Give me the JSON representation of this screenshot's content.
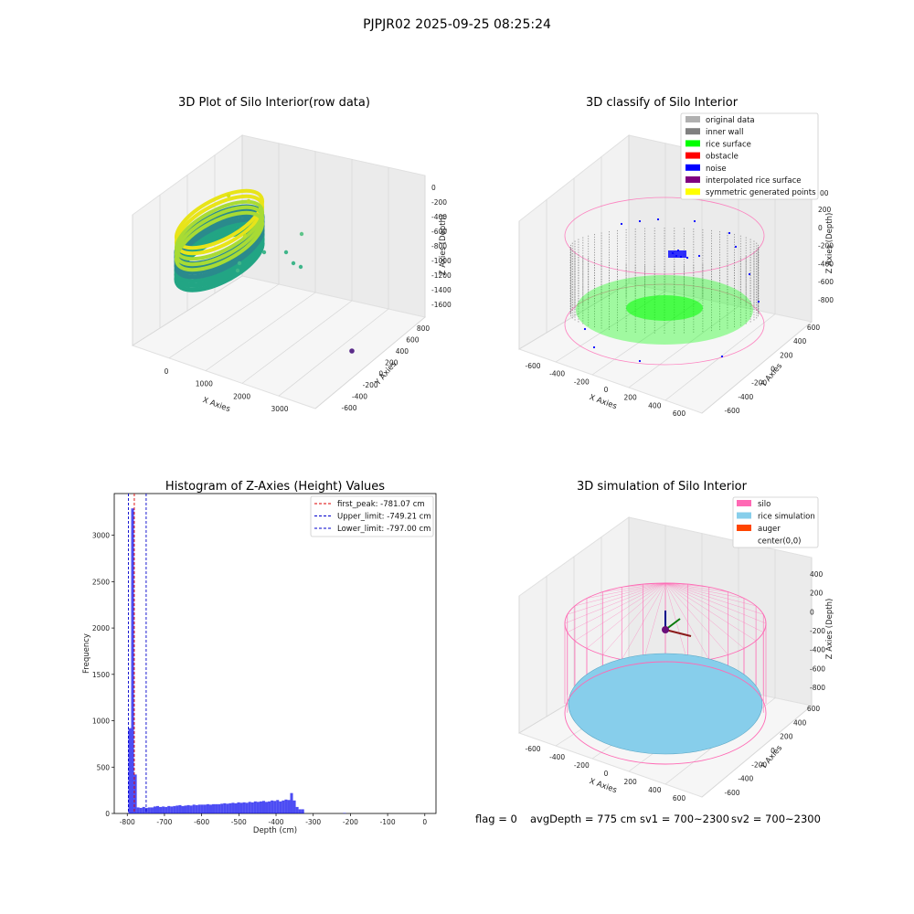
{
  "figure": {
    "suptitle": "PJPJR02 2025-09-25 08:25:24",
    "status": {
      "flag": "flag = 0",
      "avg_depth": "avgDepth = 775 cm",
      "sv1": "sv1 = 700~2300",
      "sv2": "sv2 = 700~2300"
    }
  },
  "colors": {
    "hist_bar": "#0000ee",
    "first_peak": "#dd0000",
    "limits": "#0000cc",
    "silo": "#ff69b4",
    "rice_simulation": "#87ceeb",
    "auger": "#ff4500",
    "inner_wall": "#808080",
    "rice_surface": "#00ff00",
    "noise": "#0000ff"
  },
  "chart_data": [
    {
      "type": "scatter3d",
      "title": "3D Plot of Silo Interior(row data)",
      "xlabel": "X Axies",
      "ylabel": "Y Axies",
      "zlabel": "Z Axies (Depth)",
      "x_ticks": [
        "0",
        "1000",
        "2000",
        "3000"
      ],
      "y_ticks": [
        "-600",
        "-400",
        "-200",
        "0",
        "200",
        "400",
        "600",
        "800"
      ],
      "z_ticks": [
        "0",
        "-200",
        "-400",
        "-600",
        "-800",
        "-1000",
        "-1200",
        "-1400",
        "-1600"
      ],
      "xlim": [
        -500,
        3500
      ],
      "ylim": [
        -700,
        900
      ],
      "zlim": [
        -1700,
        100
      ],
      "colormap": "viridis"
    },
    {
      "type": "scatter3d",
      "title": "3D classify of Silo Interior",
      "xlabel": "X Axies",
      "ylabel": "Y Axies",
      "zlabel": "Z Axies (Depth)",
      "x_ticks": [
        "-600",
        "-400",
        "-200",
        "0",
        "200",
        "400",
        "600"
      ],
      "y_ticks": [
        "-600",
        "-400",
        "-200",
        "0",
        "200",
        "400",
        "600"
      ],
      "z_ticks": [
        "200",
        "0",
        "-200",
        "-400",
        "-600",
        "-800"
      ],
      "z_top_tick": "00",
      "legend": [
        {
          "label": "original data",
          "color": "#b0b0b0"
        },
        {
          "label": "inner wall",
          "color": "#808080"
        },
        {
          "label": "rice surface",
          "color": "#00ff00"
        },
        {
          "label": "obstacle",
          "color": "#ff0000"
        },
        {
          "label": "noise",
          "color": "#0000ff"
        },
        {
          "label": "interpolated rice surface",
          "color": "#800080"
        },
        {
          "label": "symmetric generated points",
          "color": "#ffff00"
        }
      ]
    },
    {
      "type": "bar",
      "title": "Histogram of Z-Axies (Height) Values",
      "xlabel": "Depth (cm)",
      "ylabel": "Frequency",
      "xlim": [
        -835,
        30
      ],
      "ylim": [
        0,
        3450
      ],
      "x_ticks": [
        -800,
        -700,
        -600,
        -500,
        -400,
        -300,
        -200,
        -100,
        0
      ],
      "y_ticks": [
        0,
        500,
        1000,
        1500,
        2000,
        2500,
        3000
      ],
      "bin_start": -797,
      "bin_width": 7.5,
      "values": [
        920,
        3290,
        420,
        65,
        60,
        70,
        60,
        65,
        65,
        75,
        80,
        70,
        75,
        70,
        80,
        75,
        80,
        85,
        90,
        80,
        85,
        90,
        85,
        95,
        90,
        95,
        95,
        95,
        100,
        95,
        100,
        100,
        100,
        105,
        110,
        105,
        110,
        115,
        110,
        120,
        115,
        120,
        115,
        125,
        120,
        130,
        125,
        130,
        135,
        125,
        130,
        140,
        135,
        145,
        130,
        140,
        150,
        145,
        220,
        140,
        70,
        45,
        45,
        0,
        0,
        0,
        0,
        0,
        0,
        0,
        0,
        0,
        0,
        0,
        0,
        0,
        0,
        5
      ],
      "lines": [
        {
          "label": "first_peak: -781.07 cm",
          "x": -781.07,
          "color": "#dd0000"
        },
        {
          "label": "Upper_limit: -749.21 cm",
          "x": -749.21,
          "color": "#0000cc"
        },
        {
          "label": "Lower_limit: -797.00 cm",
          "x": -797.0,
          "color": "#0000cc"
        }
      ]
    },
    {
      "type": "surface3d",
      "title": "3D simulation of Silo Interior",
      "xlabel": "X Axies",
      "ylabel": "Y Axies",
      "zlabel": "Z Axies (Depth)",
      "x_ticks": [
        "-600",
        "-400",
        "-200",
        "0",
        "200",
        "400",
        "600"
      ],
      "y_ticks": [
        "-600",
        "-400",
        "-200",
        "0",
        "200",
        "400",
        "600"
      ],
      "z_ticks": [
        "400",
        "200",
        "0",
        "-200",
        "-400",
        "-600",
        "-800"
      ],
      "legend": [
        {
          "label": "silo",
          "color": "#ff69b4"
        },
        {
          "label": "rice simulation",
          "color": "#87ceeb"
        },
        {
          "label": "auger",
          "color": "#ff4500"
        },
        {
          "label": "center(0,0)",
          "color": ""
        }
      ]
    }
  ]
}
